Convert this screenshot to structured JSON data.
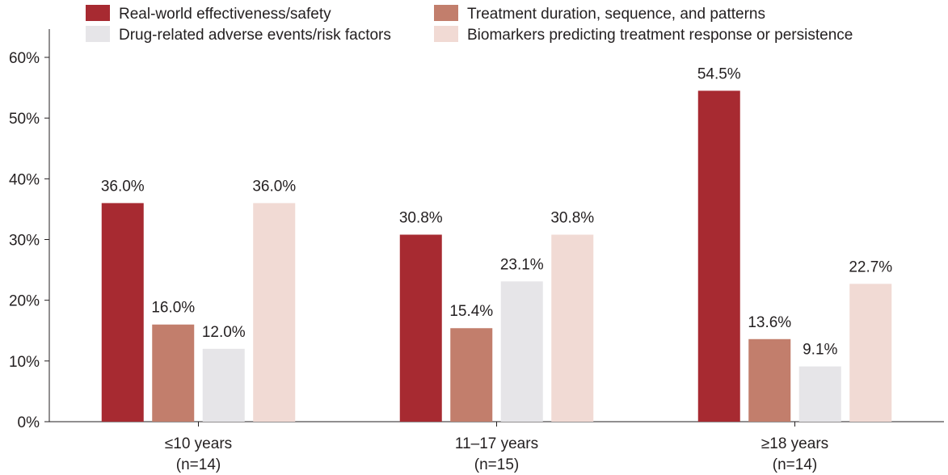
{
  "chart_data": {
    "type": "bar",
    "categories": [
      {
        "line1": "≤10 years",
        "line2": "(n=14)"
      },
      {
        "line1": "11–17 years",
        "line2": "(n=15)"
      },
      {
        "line1": "≥18 years",
        "line2": "(n=14)"
      }
    ],
    "series": [
      {
        "name": "Real-world effectiveness/safety",
        "color": "#a72a31",
        "values": [
          36.0,
          30.8,
          54.5
        ],
        "labels": [
          "36.0%",
          "30.8%",
          "54.5%"
        ]
      },
      {
        "name": "Treatment duration, sequence, and patterns",
        "color": "#c27e6c",
        "values": [
          16.0,
          15.4,
          13.6
        ],
        "labels": [
          "16.0%",
          "15.4%",
          "13.6%"
        ]
      },
      {
        "name": "Drug-related adverse events/risk factors",
        "color": "#e6e5e8",
        "values": [
          12.0,
          23.1,
          9.1
        ],
        "labels": [
          "12.0%",
          "23.1%",
          "9.1%"
        ]
      },
      {
        "name": "Biomarkers predicting treatment response or persistence",
        "color": "#f1dad4",
        "values": [
          36.0,
          30.8,
          22.7
        ],
        "labels": [
          "36.0%",
          "30.8%",
          "22.7%"
        ]
      }
    ],
    "y_ticks": [
      "0%",
      "10%",
      "20%",
      "30%",
      "40%",
      "50%",
      "60%"
    ],
    "ylim": [
      0,
      60
    ],
    "grid": false,
    "legend_position": "top",
    "title": "",
    "xlabel": "",
    "ylabel": ""
  }
}
